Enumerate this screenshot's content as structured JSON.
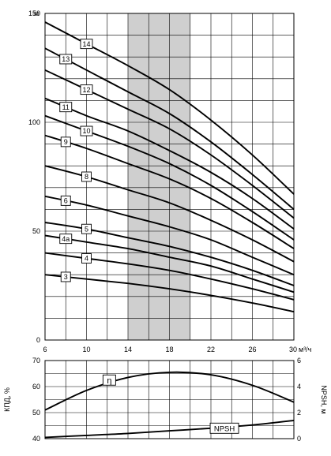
{
  "chart_data": [
    {
      "type": "line",
      "xlim": [
        6,
        30
      ],
      "ylim": [
        0,
        150
      ],
      "x_ticks": [
        "6",
        "10",
        "14",
        "18",
        "22",
        "26",
        "30"
      ],
      "x_unit": "м³/ч",
      "y_ticks": [
        "0",
        "50",
        "100",
        "150"
      ],
      "y_unit": "м",
      "grid": true,
      "shaded_region": {
        "x": [
          14,
          20
        ],
        "color": "#cfcfcf"
      },
      "series": [
        {
          "name": "14",
          "x": [
            6,
            10,
            14,
            18,
            22,
            26,
            30
          ],
          "y": [
            146,
            136,
            126,
            115,
            101,
            85,
            67
          ]
        },
        {
          "name": "13",
          "x": [
            6,
            10,
            14,
            18,
            22,
            26,
            30
          ],
          "y": [
            134,
            124,
            114,
            104,
            91,
            76,
            60
          ]
        },
        {
          "name": "12",
          "x": [
            6,
            10,
            14,
            18,
            22,
            26,
            30
          ],
          "y": [
            124,
            115,
            106,
            97,
            85,
            71,
            56
          ]
        },
        {
          "name": "11",
          "x": [
            6,
            10,
            14,
            18,
            22,
            26,
            30
          ],
          "y": [
            111,
            103,
            96,
            87,
            77,
            65,
            51
          ]
        },
        {
          "name": "10",
          "x": [
            6,
            10,
            14,
            18,
            22,
            26,
            30
          ],
          "y": [
            103,
            96,
            89,
            81,
            71,
            59,
            46
          ]
        },
        {
          "name": "9",
          "x": [
            6,
            10,
            14,
            18,
            22,
            26,
            30
          ],
          "y": [
            94,
            88,
            81,
            74,
            65,
            54,
            42
          ]
        },
        {
          "name": "8",
          "x": [
            6,
            10,
            14,
            18,
            22,
            26,
            30
          ],
          "y": [
            80,
            75,
            69,
            63,
            55,
            46,
            36
          ]
        },
        {
          "name": "6",
          "x": [
            6,
            10,
            14,
            18,
            22,
            26,
            30
          ],
          "y": [
            66,
            62,
            57,
            52,
            46,
            38,
            30
          ]
        },
        {
          "name": "5",
          "x": [
            6,
            10,
            14,
            18,
            22,
            26,
            30
          ],
          "y": [
            54,
            51,
            47,
            43,
            38,
            32,
            25
          ]
        },
        {
          "name": "4a",
          "x": [
            6,
            10,
            14,
            18,
            22,
            26,
            30
          ],
          "y": [
            48,
            45,
            42,
            38,
            34,
            28,
            22
          ]
        },
        {
          "name": "4",
          "x": [
            6,
            10,
            14,
            18,
            22,
            26,
            30
          ],
          "y": [
            40,
            37.5,
            35,
            32,
            28,
            23.5,
            18.5
          ]
        },
        {
          "name": "3",
          "x": [
            6,
            10,
            14,
            18,
            22,
            26,
            30
          ],
          "y": [
            30,
            28,
            26,
            23.5,
            20.5,
            17,
            13
          ]
        }
      ],
      "stage_labels": [
        {
          "text": "14",
          "x": 10.0,
          "y": 136
        },
        {
          "text": "13",
          "x": 8.0,
          "y": 129
        },
        {
          "text": "12",
          "x": 10.0,
          "y": 115
        },
        {
          "text": "11",
          "x": 8.0,
          "y": 107
        },
        {
          "text": "10",
          "x": 10.0,
          "y": 96
        },
        {
          "text": "9",
          "x": 8.0,
          "y": 91
        },
        {
          "text": "8",
          "x": 10.0,
          "y": 75
        },
        {
          "text": "6",
          "x": 8.0,
          "y": 64
        },
        {
          "text": "5",
          "x": 10.0,
          "y": 51
        },
        {
          "text": "4a",
          "x": 8.0,
          "y": 46.5
        },
        {
          "text": "4",
          "x": 10.0,
          "y": 37.5
        },
        {
          "text": "3",
          "x": 8.0,
          "y": 29
        }
      ]
    },
    {
      "type": "line",
      "xlim": [
        6,
        30
      ],
      "ylim_left": [
        40,
        70
      ],
      "ylim_right": [
        0,
        6
      ],
      "ylabel_left": "КПД, %",
      "ylabel_right": "NPSH, м",
      "y_ticks_left": [
        "40",
        "50",
        "60",
        "70"
      ],
      "y_ticks_right": [
        "0",
        "2",
        "4",
        "6"
      ],
      "grid": true,
      "series": [
        {
          "name": "η",
          "axis": "left",
          "x": [
            6,
            10,
            14,
            18,
            22,
            26,
            30
          ],
          "y": [
            51,
            58.5,
            63.5,
            65.5,
            64.5,
            60.5,
            54
          ]
        },
        {
          "name": "NPSH",
          "axis": "right",
          "x": [
            6,
            10,
            14,
            18,
            22,
            26,
            30
          ],
          "y": [
            0.1,
            0.25,
            0.4,
            0.6,
            0.8,
            1.05,
            1.4
          ]
        }
      ]
    }
  ]
}
